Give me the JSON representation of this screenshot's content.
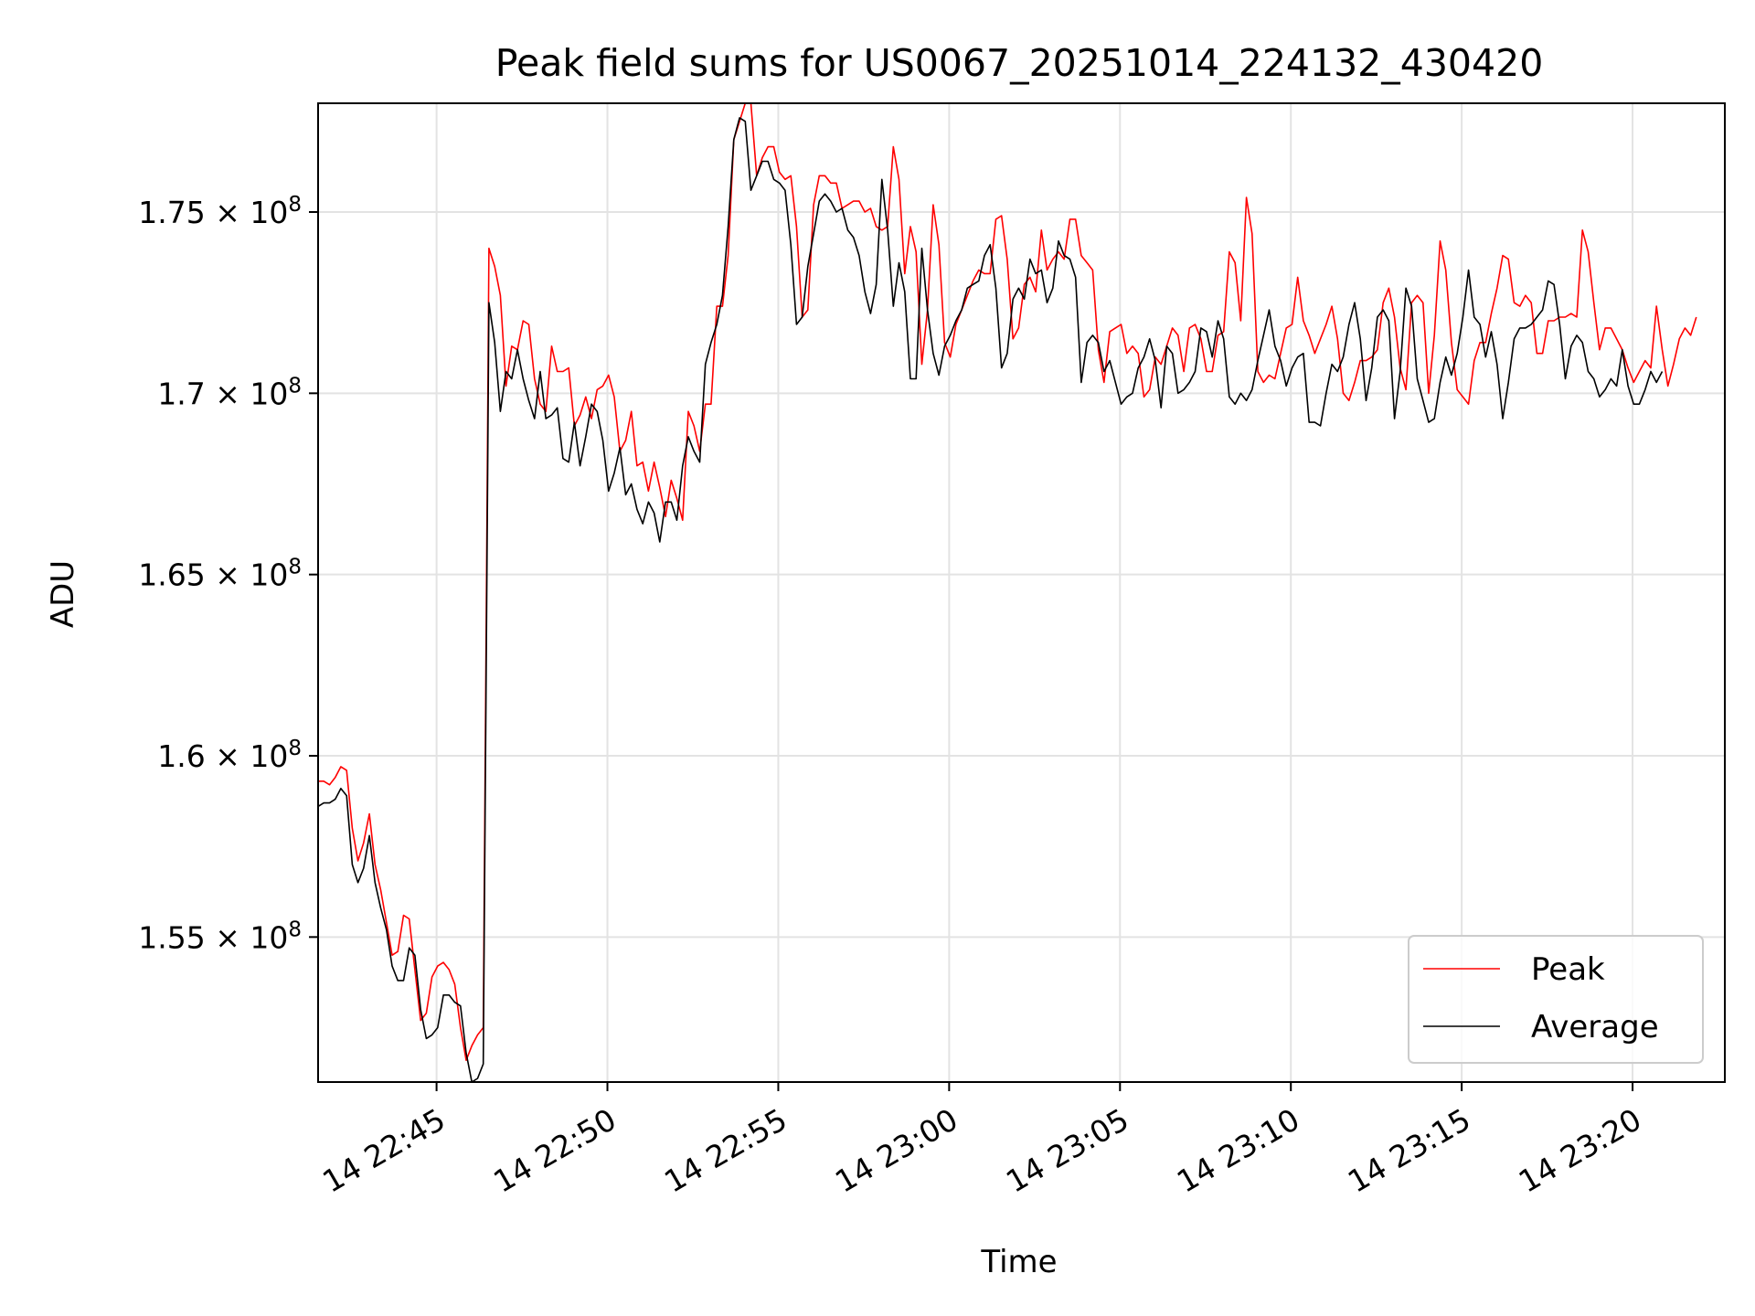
{
  "chart_data": {
    "type": "line",
    "title": "Peak field sums for US0067_20251014_224132_430420",
    "xlabel": "Time",
    "ylabel": "ADU",
    "x_start": "2025-10-14 22:41:32",
    "x_step_seconds": 10,
    "xlim": [
      "2025-10-14 22:41:32",
      "2025-10-14 23:22:42"
    ],
    "ylim": [
      151000000,
      178000000
    ],
    "x_ticks": [
      {
        "t": "2025-10-14 22:45",
        "label": "14 22:45"
      },
      {
        "t": "2025-10-14 22:50",
        "label": "14 22:50"
      },
      {
        "t": "2025-10-14 22:55",
        "label": "14 22:55"
      },
      {
        "t": "2025-10-14 23:00",
        "label": "14 23:00"
      },
      {
        "t": "2025-10-14 23:05",
        "label": "14 23:05"
      },
      {
        "t": "2025-10-14 23:10",
        "label": "14 23:10"
      },
      {
        "t": "2025-10-14 23:15",
        "label": "14 23:15"
      },
      {
        "t": "2025-10-14 23:20",
        "label": "14 23:20"
      }
    ],
    "y_ticks": [
      {
        "value": 155000000,
        "label": "1.55 × 10",
        "exp": "8"
      },
      {
        "value": 160000000,
        "label": "1.6 × 10",
        "exp": "8"
      },
      {
        "value": 165000000,
        "label": "1.65 × 10",
        "exp": "8"
      },
      {
        "value": 170000000,
        "label": "1.7 × 10",
        "exp": "8"
      },
      {
        "value": 175000000,
        "label": "1.75 × 10",
        "exp": "8"
      }
    ],
    "grid": true,
    "legend_position": "bottom-right",
    "series": [
      {
        "name": "Peak",
        "color": "#ff0000",
        "values": [
          159.3,
          159.3,
          159.2,
          159.4,
          159.7,
          159.6,
          158.0,
          157.1,
          157.6,
          158.4,
          157.0,
          156.3,
          155.4,
          154.5,
          154.6,
          155.6,
          155.5,
          154.1,
          152.7,
          152.9,
          153.9,
          154.2,
          154.3,
          154.1,
          153.7,
          152.5,
          151.6,
          152.0,
          152.3,
          152.5,
          174.0,
          173.5,
          172.7,
          170.2,
          171.3,
          171.2,
          172.0,
          171.9,
          170.4,
          169.7,
          169.5,
          171.3,
          170.6,
          170.6,
          170.7,
          169.1,
          169.4,
          169.9,
          169.3,
          170.1,
          170.2,
          170.5,
          169.9,
          168.4,
          168.7,
          169.5,
          168.0,
          168.1,
          167.3,
          168.1,
          167.4,
          166.6,
          167.6,
          167.1,
          166.5,
          169.5,
          169.1,
          168.4,
          169.7,
          169.7,
          172.4,
          172.4,
          173.8,
          177.0,
          177.5,
          178.0,
          178.0,
          176.0,
          176.5,
          176.8,
          176.8,
          176.1,
          175.9,
          176.0,
          174.6,
          172.1,
          172.3,
          175.2,
          176.0,
          176.0,
          175.8,
          175.8,
          175.1,
          175.2,
          175.3,
          175.3,
          175.0,
          175.1,
          174.6,
          174.5,
          174.6,
          176.8,
          175.9,
          173.3,
          174.6,
          173.9,
          170.8,
          172.3,
          175.2,
          174.1,
          171.4,
          171.0,
          171.9,
          172.3,
          172.7,
          173.1,
          173.4,
          173.3,
          173.3,
          174.8,
          174.9,
          173.7,
          171.5,
          171.8,
          173.0,
          173.2,
          172.8,
          174.5,
          173.4,
          173.7,
          173.9,
          173.7,
          174.8,
          174.8,
          173.8,
          173.6,
          173.4,
          171.2,
          170.3,
          171.7,
          171.8,
          171.9,
          171.1,
          171.3,
          171.1,
          169.9,
          170.1,
          171.0,
          170.8,
          171.3,
          171.8,
          171.6,
          170.6,
          171.8,
          171.9,
          171.5,
          170.6,
          170.6,
          171.6,
          171.7,
          173.9,
          173.6,
          172.0,
          175.4,
          174.4,
          170.6,
          170.3,
          170.5,
          170.4,
          171.1,
          171.8,
          171.9,
          173.2,
          172.0,
          171.6,
          171.1,
          171.5,
          171.9,
          172.4,
          171.5,
          170.0,
          169.8,
          170.3,
          170.9,
          170.9,
          171.0,
          171.2,
          172.5,
          172.9,
          172.1,
          170.7,
          170.1,
          172.5,
          172.7,
          172.5,
          170.0,
          171.6,
          174.2,
          173.4,
          171.4,
          170.1,
          169.9,
          169.7,
          170.9,
          171.4,
          171.4,
          172.2,
          172.9,
          173.8,
          173.7,
          172.5,
          172.4,
          172.7,
          172.5,
          171.1,
          171.1,
          172.0,
          172.0,
          172.1,
          172.1,
          172.2,
          172.1,
          174.5,
          173.9,
          172.5,
          171.2,
          171.8,
          171.8,
          171.5,
          171.2,
          170.7,
          170.3,
          170.6,
          170.9,
          170.7,
          172.4,
          171.2,
          170.2,
          170.8,
          171.5,
          171.8,
          171.6,
          172.1
        ]
      },
      {
        "name": "Average",
        "color": "#000000",
        "values": [
          158.6,
          158.7,
          158.7,
          158.8,
          159.1,
          158.9,
          157.0,
          156.5,
          156.9,
          157.8,
          156.5,
          155.8,
          155.2,
          154.2,
          153.8,
          153.8,
          154.7,
          154.5,
          153.0,
          152.2,
          152.3,
          152.5,
          153.4,
          153.4,
          153.2,
          153.1,
          151.8,
          151.0,
          151.1,
          151.5,
          172.5,
          171.4,
          169.5,
          170.6,
          170.4,
          171.2,
          170.4,
          169.8,
          169.3,
          170.6,
          169.3,
          169.4,
          169.6,
          168.2,
          168.1,
          169.2,
          168.0,
          168.8,
          169.7,
          169.5,
          168.7,
          167.3,
          167.8,
          168.5,
          167.2,
          167.5,
          166.8,
          166.4,
          167.0,
          166.7,
          165.9,
          167.0,
          167.0,
          166.5,
          168.0,
          168.8,
          168.4,
          168.1,
          170.8,
          171.4,
          171.9,
          172.7,
          174.6,
          177.0,
          177.6,
          177.5,
          175.6,
          176.0,
          176.4,
          176.4,
          175.9,
          175.8,
          175.6,
          174.1,
          171.9,
          172.1,
          173.5,
          174.4,
          175.3,
          175.5,
          175.3,
          175.0,
          175.1,
          174.5,
          174.3,
          173.8,
          172.8,
          172.2,
          173.0,
          175.9,
          174.5,
          172.4,
          173.6,
          172.8,
          170.4,
          170.4,
          174.0,
          172.3,
          171.1,
          170.5,
          171.3,
          171.6,
          172.0,
          172.3,
          172.9,
          173.0,
          173.1,
          173.8,
          174.1,
          172.9,
          170.7,
          171.1,
          172.6,
          172.9,
          172.6,
          173.7,
          173.3,
          173.4,
          172.5,
          172.9,
          174.2,
          173.8,
          173.7,
          173.2,
          170.3,
          171.4,
          171.6,
          171.4,
          170.6,
          170.9,
          170.3,
          169.7,
          169.9,
          170.0,
          170.7,
          171.0,
          171.5,
          170.9,
          169.6,
          171.3,
          171.1,
          170.0,
          170.1,
          170.3,
          170.6,
          171.8,
          171.7,
          171.0,
          172.0,
          171.5,
          169.9,
          169.7,
          170.0,
          169.8,
          170.1,
          170.9,
          171.6,
          172.3,
          171.3,
          170.9,
          170.2,
          170.7,
          171.0,
          171.1,
          169.2,
          169.2,
          169.1,
          170.0,
          170.8,
          170.6,
          171.0,
          171.9,
          172.5,
          171.5,
          169.8,
          170.7,
          172.1,
          172.3,
          172.0,
          169.3,
          170.6,
          172.9,
          172.4,
          170.4,
          169.8,
          169.2,
          169.3,
          170.3,
          171.0,
          170.5,
          171.1,
          172.1,
          173.4,
          172.1,
          171.9,
          171.0,
          171.7,
          170.8,
          169.3,
          170.3,
          171.5,
          171.8,
          171.8,
          171.9,
          172.1,
          172.3,
          173.1,
          173.0,
          171.9,
          170.4,
          171.3,
          171.6,
          171.4,
          170.6,
          170.4,
          169.9,
          170.1,
          170.4,
          170.2,
          171.2,
          170.2,
          169.7,
          169.7,
          170.1,
          170.6,
          170.3,
          170.6
        ]
      }
    ]
  }
}
